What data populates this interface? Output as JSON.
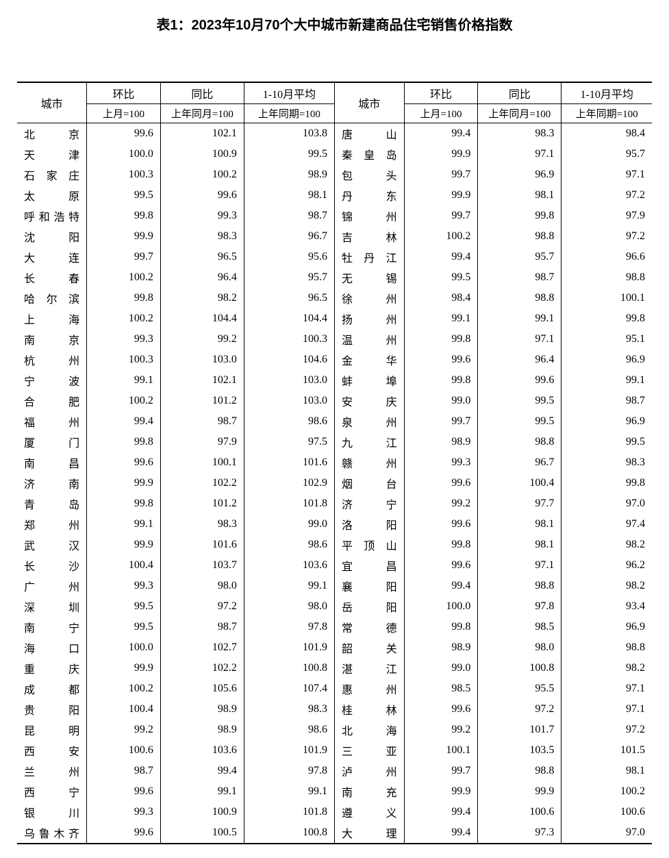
{
  "title": "表1：2023年10月70个大中城市新建商品住宅销售价格指数",
  "headers": {
    "city": "城市",
    "mom": "环比",
    "yoy": "同比",
    "avg": "1-10月平均",
    "mom_sub": "上月=100",
    "yoy_sub": "上年同月=100",
    "avg_sub": "上年同期=100"
  },
  "left": [
    {
      "city": "北　　京",
      "mom": "99.6",
      "yoy": "102.1",
      "avg": "103.8"
    },
    {
      "city": "天　　津",
      "mom": "100.0",
      "yoy": "100.9",
      "avg": "99.5"
    },
    {
      "city": "石 家 庄",
      "mom": "100.3",
      "yoy": "100.2",
      "avg": "98.9"
    },
    {
      "city": "太　　原",
      "mom": "99.5",
      "yoy": "99.6",
      "avg": "98.1"
    },
    {
      "city": "呼和浩特",
      "mom": "99.8",
      "yoy": "99.3",
      "avg": "98.7"
    },
    {
      "city": "沈　　阳",
      "mom": "99.9",
      "yoy": "98.3",
      "avg": "96.7"
    },
    {
      "city": "大　　连",
      "mom": "99.7",
      "yoy": "96.5",
      "avg": "95.6"
    },
    {
      "city": "长　　春",
      "mom": "100.2",
      "yoy": "96.4",
      "avg": "95.7"
    },
    {
      "city": "哈 尔 滨",
      "mom": "99.8",
      "yoy": "98.2",
      "avg": "96.5"
    },
    {
      "city": "上　　海",
      "mom": "100.2",
      "yoy": "104.4",
      "avg": "104.4"
    },
    {
      "city": "南　　京",
      "mom": "99.3",
      "yoy": "99.2",
      "avg": "100.3"
    },
    {
      "city": "杭　　州",
      "mom": "100.3",
      "yoy": "103.0",
      "avg": "104.6"
    },
    {
      "city": "宁　　波",
      "mom": "99.1",
      "yoy": "102.1",
      "avg": "103.0"
    },
    {
      "city": "合　　肥",
      "mom": "100.2",
      "yoy": "101.2",
      "avg": "103.0"
    },
    {
      "city": "福　　州",
      "mom": "99.4",
      "yoy": "98.7",
      "avg": "98.6"
    },
    {
      "city": "厦　　门",
      "mom": "99.8",
      "yoy": "97.9",
      "avg": "97.5"
    },
    {
      "city": "南　　昌",
      "mom": "99.6",
      "yoy": "100.1",
      "avg": "101.6"
    },
    {
      "city": "济　　南",
      "mom": "99.9",
      "yoy": "102.2",
      "avg": "102.9"
    },
    {
      "city": "青　　岛",
      "mom": "99.8",
      "yoy": "101.2",
      "avg": "101.8"
    },
    {
      "city": "郑　　州",
      "mom": "99.1",
      "yoy": "98.3",
      "avg": "99.0"
    },
    {
      "city": "武　　汉",
      "mom": "99.9",
      "yoy": "101.6",
      "avg": "98.6"
    },
    {
      "city": "长　　沙",
      "mom": "100.4",
      "yoy": "103.7",
      "avg": "103.6"
    },
    {
      "city": "广　　州",
      "mom": "99.3",
      "yoy": "98.0",
      "avg": "99.1"
    },
    {
      "city": "深　　圳",
      "mom": "99.5",
      "yoy": "97.2",
      "avg": "98.0"
    },
    {
      "city": "南　　宁",
      "mom": "99.5",
      "yoy": "98.7",
      "avg": "97.8"
    },
    {
      "city": "海　　口",
      "mom": "100.0",
      "yoy": "102.7",
      "avg": "101.9"
    },
    {
      "city": "重　　庆",
      "mom": "99.9",
      "yoy": "102.2",
      "avg": "100.8"
    },
    {
      "city": "成　　都",
      "mom": "100.2",
      "yoy": "105.6",
      "avg": "107.4"
    },
    {
      "city": "贵　　阳",
      "mom": "100.4",
      "yoy": "98.9",
      "avg": "98.3"
    },
    {
      "city": "昆　　明",
      "mom": "99.2",
      "yoy": "98.9",
      "avg": "98.6"
    },
    {
      "city": "西　　安",
      "mom": "100.6",
      "yoy": "103.6",
      "avg": "101.9"
    },
    {
      "city": "兰　　州",
      "mom": "98.7",
      "yoy": "99.4",
      "avg": "97.8"
    },
    {
      "city": "西　　宁",
      "mom": "99.6",
      "yoy": "99.1",
      "avg": "99.1"
    },
    {
      "city": "银　　川",
      "mom": "99.3",
      "yoy": "100.9",
      "avg": "101.8"
    },
    {
      "city": "乌鲁木齐",
      "mom": "99.6",
      "yoy": "100.5",
      "avg": "100.8"
    }
  ],
  "right": [
    {
      "city": "唐　　山",
      "mom": "99.4",
      "yoy": "98.3",
      "avg": "98.4"
    },
    {
      "city": "秦 皇 岛",
      "mom": "99.9",
      "yoy": "97.1",
      "avg": "95.7"
    },
    {
      "city": "包　　头",
      "mom": "99.7",
      "yoy": "96.9",
      "avg": "97.1"
    },
    {
      "city": "丹　　东",
      "mom": "99.9",
      "yoy": "98.1",
      "avg": "97.2"
    },
    {
      "city": "锦　　州",
      "mom": "99.7",
      "yoy": "99.8",
      "avg": "97.9"
    },
    {
      "city": "吉　　林",
      "mom": "100.2",
      "yoy": "98.8",
      "avg": "97.2"
    },
    {
      "city": "牡 丹 江",
      "mom": "99.4",
      "yoy": "95.7",
      "avg": "96.6"
    },
    {
      "city": "无　　锡",
      "mom": "99.5",
      "yoy": "98.7",
      "avg": "98.8"
    },
    {
      "city": "徐　　州",
      "mom": "98.4",
      "yoy": "98.8",
      "avg": "100.1"
    },
    {
      "city": "扬　　州",
      "mom": "99.1",
      "yoy": "99.1",
      "avg": "99.8"
    },
    {
      "city": "温　　州",
      "mom": "99.8",
      "yoy": "97.1",
      "avg": "95.1"
    },
    {
      "city": "金　　华",
      "mom": "99.6",
      "yoy": "96.4",
      "avg": "96.9"
    },
    {
      "city": "蚌　　埠",
      "mom": "99.8",
      "yoy": "99.6",
      "avg": "99.1"
    },
    {
      "city": "安　　庆",
      "mom": "99.0",
      "yoy": "99.5",
      "avg": "98.7"
    },
    {
      "city": "泉　　州",
      "mom": "99.7",
      "yoy": "99.5",
      "avg": "96.9"
    },
    {
      "city": "九　　江",
      "mom": "98.9",
      "yoy": "98.8",
      "avg": "99.5"
    },
    {
      "city": "赣　　州",
      "mom": "99.3",
      "yoy": "96.7",
      "avg": "98.3"
    },
    {
      "city": "烟　　台",
      "mom": "99.6",
      "yoy": "100.4",
      "avg": "99.8"
    },
    {
      "city": "济　　宁",
      "mom": "99.2",
      "yoy": "97.7",
      "avg": "97.0"
    },
    {
      "city": "洛　　阳",
      "mom": "99.6",
      "yoy": "98.1",
      "avg": "97.4"
    },
    {
      "city": "平 顶 山",
      "mom": "99.8",
      "yoy": "98.1",
      "avg": "98.2"
    },
    {
      "city": "宜　　昌",
      "mom": "99.6",
      "yoy": "97.1",
      "avg": "96.2"
    },
    {
      "city": "襄　　阳",
      "mom": "99.4",
      "yoy": "98.8",
      "avg": "98.2"
    },
    {
      "city": "岳　　阳",
      "mom": "100.0",
      "yoy": "97.8",
      "avg": "93.4"
    },
    {
      "city": "常　　德",
      "mom": "99.8",
      "yoy": "98.5",
      "avg": "96.9"
    },
    {
      "city": "韶　　关",
      "mom": "98.9",
      "yoy": "98.0",
      "avg": "98.8"
    },
    {
      "city": "湛　　江",
      "mom": "99.0",
      "yoy": "100.8",
      "avg": "98.2"
    },
    {
      "city": "惠　　州",
      "mom": "98.5",
      "yoy": "95.5",
      "avg": "97.1"
    },
    {
      "city": "桂　　林",
      "mom": "99.6",
      "yoy": "97.2",
      "avg": "97.1"
    },
    {
      "city": "北　　海",
      "mom": "99.2",
      "yoy": "101.7",
      "avg": "97.2"
    },
    {
      "city": "三　　亚",
      "mom": "100.1",
      "yoy": "103.5",
      "avg": "101.5"
    },
    {
      "city": "泸　　州",
      "mom": "99.7",
      "yoy": "98.8",
      "avg": "98.1"
    },
    {
      "city": "南　　充",
      "mom": "99.9",
      "yoy": "99.9",
      "avg": "100.2"
    },
    {
      "city": "遵　　义",
      "mom": "99.4",
      "yoy": "100.6",
      "avg": "100.6"
    },
    {
      "city": "大　　理",
      "mom": "99.4",
      "yoy": "97.3",
      "avg": "97.0"
    }
  ]
}
